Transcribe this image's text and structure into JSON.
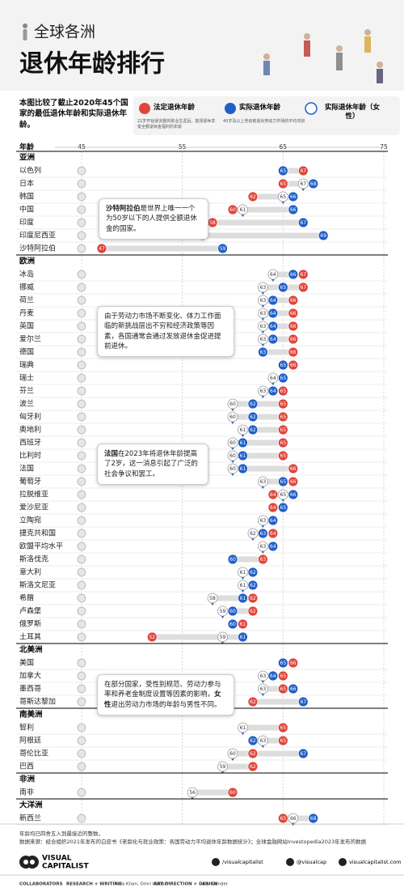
{
  "header": {
    "kicker": "全球各洲",
    "title": "退休年龄排行",
    "intro": "本图比较了截止2020年45个国家的最低退休年龄和实际退休年龄。"
  },
  "chart_data": {
    "type": "dot",
    "x_label": "年龄",
    "xlim": [
      45,
      75
    ],
    "xticks": [
      45,
      55,
      65,
      75
    ],
    "grid": true,
    "series": [
      {
        "name": "法定退休年龄",
        "description": "22岁开始受完整的职业生涯后，能领退休享受全额退休金福利的年龄",
        "color": "#e0453a",
        "values": [
          67,
          65,
          62,
          60,
          58,
          57,
          47,
          67,
          67,
          66,
          66,
          66,
          66,
          66,
          66,
          65,
          65,
          65,
          65,
          65,
          65,
          65,
          66,
          66,
          64,
          64,
          64,
          64,
          64,
          63,
          62,
          62,
          62,
          62,
          61,
          52,
          66,
          65,
          65,
          62,
          65,
          65,
          62,
          62,
          60,
          65
        ]
      },
      {
        "name": "实际退休年龄",
        "description": "40岁及以上劳动者退出劳动力市场的平均年龄",
        "color": "#1f5fc8",
        "values": [
          65,
          68,
          66,
          66,
          67,
          69,
          59,
          66,
          65,
          64,
          64,
          64,
          64,
          63,
          65,
          65,
          64,
          62,
          62,
          62,
          61,
          61,
          61,
          65,
          66,
          65,
          64,
          63,
          64,
          60,
          62,
          62,
          61,
          60,
          60,
          61,
          65,
          64,
          66,
          67,
          null,
          62,
          67,
          null,
          null,
          68
        ]
      },
      {
        "name": "实际退休年龄（女性）",
        "color": "#ffffff",
        "values": [
          null,
          67,
          65,
          61,
          null,
          null,
          null,
          64,
          63,
          63,
          63,
          63,
          63,
          null,
          null,
          64,
          63,
          60,
          60,
          61,
          60,
          60,
          60,
          63,
          65,
          null,
          63,
          62,
          63,
          null,
          61,
          61,
          58,
          59,
          null,
          59,
          null,
          63,
          63,
          null,
          61,
          63,
          60,
          59,
          56,
          66
        ]
      }
    ],
    "groups": [
      {
        "name": "亚洲",
        "categories": [
          "以色列",
          "日本",
          "韩国",
          "中国",
          "印度",
          "印度尼西亚",
          "沙特阿拉伯"
        ]
      },
      {
        "name": "欧洲",
        "categories": [
          "冰岛",
          "挪威",
          "荷兰",
          "丹麦",
          "英国",
          "爱尔兰",
          "德国",
          "瑞典",
          "瑞士",
          "芬兰",
          "波兰",
          "匈牙利",
          "奥地利",
          "西班牙",
          "比利时",
          "法国",
          "葡萄牙",
          "拉脱维亚",
          "爱沙尼亚",
          "立陶宛",
          "捷克共和国",
          "欧盟平均水平",
          "斯洛伐克",
          "意大利",
          "斯洛文尼亚",
          "希腊",
          "卢森堡",
          "俄罗斯",
          "土耳其"
        ]
      },
      {
        "name": "北美洲",
        "categories": [
          "美国",
          "加拿大",
          "墨西哥",
          "哥斯达黎加"
        ]
      },
      {
        "name": "南美洲",
        "categories": [
          "智利",
          "阿根廷",
          "哥伦比亚",
          "巴西"
        ]
      },
      {
        "name": "非洲",
        "categories": [
          "南非"
        ]
      },
      {
        "name": "大洋洲",
        "categories": [
          "新西兰"
        ]
      }
    ],
    "annotations": [
      {
        "parts": [
          {
            "text": "沙特阿拉伯",
            "bold": true
          },
          {
            "text": "是世界上唯一一个为50岁以下的人提供全额退休金的国家。",
            "bold": false
          }
        ]
      },
      {
        "parts": [
          {
            "text": "由于劳动力市场不断变化、体力工作面临的新挑战层出不穷和经济政策等因素，各国通常会通过发放退休金促进提前退休。",
            "bold": false
          }
        ]
      },
      {
        "parts": [
          {
            "text": "法国",
            "bold": true
          },
          {
            "text": "在2023年将退休年龄提高了2岁，这一消息引起了广泛的社会争议和罢工。",
            "bold": false
          }
        ]
      },
      {
        "parts": [
          {
            "text": "在部分国家，受性别规范、劳动力参与率和养老金制度设置等因素的影响，",
            "bold": false
          },
          {
            "text": "女性",
            "bold": true
          },
          {
            "text": "退出劳动力市场的年龄与男性不同。",
            "bold": false
          }
        ]
      }
    ]
  },
  "footer": {
    "note": "年龄均已四舍五入到最接近的整数。",
    "source": "数据来源：经合组织2021年发布的白皮书《老龄化与就业政策：各国劳动力平均退休年龄数据统计》；全球金融网站Investopedia2023年发布的数据",
    "brand": [
      "VISUAL",
      "CAPITALIST"
    ],
    "social": [
      "/visualcapitalist",
      "@visualcap",
      "visualcapitalist.com"
    ],
    "credits": [
      "COLLABORATORS",
      "RESEARCH + WRITING",
      "Rida Khan, Omri Wallach",
      "ART DIRECTION + DESIGN",
      "Alai Dander"
    ]
  }
}
